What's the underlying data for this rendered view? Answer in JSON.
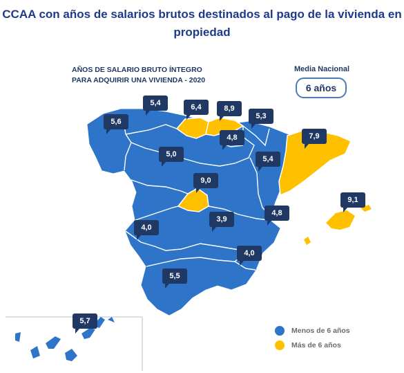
{
  "title": "CCAA con años de salarios brutos destinados al pago de la vivienda en propiedad",
  "subtitle_line1": "AÑOS DE SALARIO BRUTO ÍNTEGRO",
  "subtitle_line2": "PARA ADQUIRIR UNA VIVIENDA - 2020",
  "media": {
    "label": "Media Nacional",
    "value": "6 años"
  },
  "colors": {
    "below": "#2e75c9",
    "above": "#ffc000",
    "callout": "#1f3864",
    "border": "#ffffff"
  },
  "regions": [
    {
      "name": "Galicia",
      "value": "5,6",
      "category": "below"
    },
    {
      "name": "Asturias",
      "value": "5,4",
      "category": "below"
    },
    {
      "name": "Cantabria",
      "value": "6,4",
      "category": "above"
    },
    {
      "name": "País Vasco",
      "value": "8,9",
      "category": "above"
    },
    {
      "name": "Navarra",
      "value": "5,3",
      "category": "below"
    },
    {
      "name": "La Rioja",
      "value": "4,8",
      "category": "below"
    },
    {
      "name": "Aragón",
      "value": "5,4",
      "category": "below"
    },
    {
      "name": "Cataluña",
      "value": "7,9",
      "category": "above"
    },
    {
      "name": "Castilla y León",
      "value": "5,0",
      "category": "below"
    },
    {
      "name": "Madrid",
      "value": "9,0",
      "category": "above"
    },
    {
      "name": "Castilla-La Mancha",
      "value": "3,9",
      "category": "below"
    },
    {
      "name": "Extremadura",
      "value": "4,0",
      "category": "below"
    },
    {
      "name": "Comunidad Valenciana",
      "value": "4,8",
      "category": "below"
    },
    {
      "name": "Islas Baleares",
      "value": "9,1",
      "category": "above"
    },
    {
      "name": "Murcia",
      "value": "4,0",
      "category": "below"
    },
    {
      "name": "Andalucía",
      "value": "5,5",
      "category": "below"
    },
    {
      "name": "Canarias",
      "value": "5,7",
      "category": "below"
    }
  ],
  "legend": [
    {
      "label": "Menos de 6 años",
      "color": "#2e75c9"
    },
    {
      "label": "Más de 6 años",
      "color": "#ffc000"
    }
  ]
}
